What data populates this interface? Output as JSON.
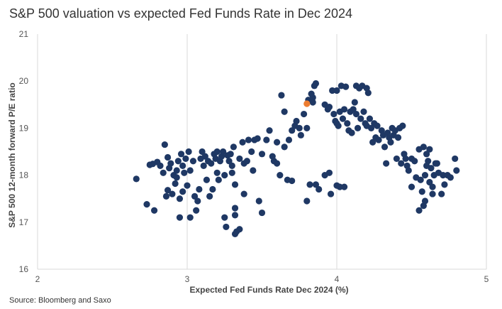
{
  "title": "S&P 500 valuation vs expected Fed Funds Rate in Dec 2024",
  "source": "Source: Bloomberg and Saxo",
  "chart_data": {
    "type": "scatter",
    "title": "S&P 500 valuation vs expected Fed Funds Rate in Dec 2024",
    "xlabel": "Expected Fed Funds Rate Dec 2024 (%)",
    "ylabel": "S&P 500 12-month forward P/E ratio",
    "xlim": [
      2,
      5
    ],
    "ylim": [
      16,
      21
    ],
    "xticks": [
      2,
      3,
      4,
      5
    ],
    "yticks": [
      16,
      17,
      18,
      19,
      20,
      21
    ],
    "grid": "vertical",
    "colors": {
      "series": "#1f3864",
      "highlight": "#ed7d31",
      "grid": "#d9d9d9"
    },
    "series": [
      {
        "color": "#1f3864",
        "points": [
          [
            2.66,
            17.92
          ],
          [
            2.73,
            17.38
          ],
          [
            2.75,
            18.22
          ],
          [
            2.77,
            18.24
          ],
          [
            2.78,
            17.25
          ],
          [
            2.8,
            18.28
          ],
          [
            2.82,
            18.2
          ],
          [
            2.84,
            18.05
          ],
          [
            2.85,
            18.65
          ],
          [
            2.86,
            17.55
          ],
          [
            2.87,
            18.38
          ],
          [
            2.87,
            17.68
          ],
          [
            2.88,
            18.15
          ],
          [
            2.89,
            18.25
          ],
          [
            2.9,
            17.6
          ],
          [
            2.91,
            18.0
          ],
          [
            2.92,
            17.82
          ],
          [
            2.93,
            18.1
          ],
          [
            2.93,
            17.95
          ],
          [
            2.94,
            18.3
          ],
          [
            2.95,
            17.5
          ],
          [
            2.95,
            17.1
          ],
          [
            2.96,
            18.45
          ],
          [
            2.97,
            18.2
          ],
          [
            2.97,
            17.65
          ],
          [
            2.98,
            18.05
          ],
          [
            2.99,
            18.35
          ],
          [
            3.0,
            17.78
          ],
          [
            3.01,
            18.5
          ],
          [
            3.02,
            18.1
          ],
          [
            3.02,
            17.1
          ],
          [
            3.04,
            18.3
          ],
          [
            3.05,
            17.55
          ],
          [
            3.06,
            17.25
          ],
          [
            3.07,
            17.45
          ],
          [
            3.08,
            17.7
          ],
          [
            3.09,
            18.35
          ],
          [
            3.1,
            18.5
          ],
          [
            3.11,
            18.2
          ],
          [
            3.12,
            18.4
          ],
          [
            3.13,
            17.9
          ],
          [
            3.14,
            18.3
          ],
          [
            3.15,
            17.55
          ],
          [
            3.16,
            18.25
          ],
          [
            3.17,
            17.7
          ],
          [
            3.18,
            18.45
          ],
          [
            3.19,
            18.35
          ],
          [
            3.2,
            18.5
          ],
          [
            3.2,
            18.05
          ],
          [
            3.21,
            17.9
          ],
          [
            3.22,
            18.3
          ],
          [
            3.23,
            18.4
          ],
          [
            3.24,
            18.5
          ],
          [
            3.25,
            18.0
          ],
          [
            3.25,
            17.1
          ],
          [
            3.26,
            16.9
          ],
          [
            3.27,
            18.42
          ],
          [
            3.28,
            18.3
          ],
          [
            3.29,
            18.45
          ],
          [
            3.3,
            18.2
          ],
          [
            3.3,
            18.05
          ],
          [
            3.31,
            18.6
          ],
          [
            3.32,
            17.8
          ],
          [
            3.32,
            17.3
          ],
          [
            3.32,
            17.15
          ],
          [
            3.32,
            16.75
          ],
          [
            3.33,
            16.8
          ],
          [
            3.35,
            16.85
          ],
          [
            3.35,
            18.35
          ],
          [
            3.37,
            18.7
          ],
          [
            3.38,
            18.25
          ],
          [
            3.38,
            17.6
          ],
          [
            3.4,
            18.3
          ],
          [
            3.41,
            18.75
          ],
          [
            3.43,
            18.5
          ],
          [
            3.44,
            18.1
          ],
          [
            3.45,
            18.75
          ],
          [
            3.47,
            18.78
          ],
          [
            3.48,
            17.45
          ],
          [
            3.5,
            18.45
          ],
          [
            3.5,
            17.2
          ],
          [
            3.53,
            18.75
          ],
          [
            3.55,
            18.95
          ],
          [
            3.57,
            18.4
          ],
          [
            3.58,
            18.3
          ],
          [
            3.6,
            18.7
          ],
          [
            3.6,
            18.25
          ],
          [
            3.62,
            18.0
          ],
          [
            3.63,
            19.7
          ],
          [
            3.65,
            19.35
          ],
          [
            3.65,
            18.6
          ],
          [
            3.67,
            17.9
          ],
          [
            3.68,
            18.75
          ],
          [
            3.7,
            18.95
          ],
          [
            3.7,
            17.88
          ],
          [
            3.72,
            19.05
          ],
          [
            3.73,
            19.15
          ],
          [
            3.75,
            19.0
          ],
          [
            3.76,
            18.85
          ],
          [
            3.78,
            19.3
          ],
          [
            3.8,
            19.0
          ],
          [
            3.8,
            17.45
          ],
          [
            3.81,
            19.6
          ],
          [
            3.82,
            17.8
          ],
          [
            3.83,
            19.73
          ],
          [
            3.84,
            19.65
          ],
          [
            3.84,
            19.55
          ],
          [
            3.85,
            19.9
          ],
          [
            3.86,
            19.95
          ],
          [
            3.86,
            17.8
          ],
          [
            3.88,
            17.7
          ],
          [
            3.92,
            19.5
          ],
          [
            3.92,
            18.0
          ],
          [
            3.94,
            19.4
          ],
          [
            3.95,
            19.45
          ],
          [
            3.95,
            18.05
          ],
          [
            3.96,
            17.6
          ],
          [
            3.97,
            19.8
          ],
          [
            3.98,
            19.3
          ],
          [
            3.99,
            19.15
          ],
          [
            4.0,
            19.8
          ],
          [
            4.0,
            19.1
          ],
          [
            4.0,
            17.78
          ],
          [
            4.01,
            19.05
          ],
          [
            4.02,
            19.35
          ],
          [
            4.02,
            17.75
          ],
          [
            4.03,
            19.9
          ],
          [
            4.04,
            19.2
          ],
          [
            4.05,
            19.4
          ],
          [
            4.05,
            17.75
          ],
          [
            4.06,
            19.88
          ],
          [
            4.07,
            19.1
          ],
          [
            4.08,
            18.95
          ],
          [
            4.09,
            19.35
          ],
          [
            4.1,
            18.9
          ],
          [
            4.11,
            19.4
          ],
          [
            4.12,
            19.55
          ],
          [
            4.13,
            19.3
          ],
          [
            4.13,
            19.9
          ],
          [
            4.14,
            19.0
          ],
          [
            4.15,
            19.85
          ],
          [
            4.16,
            19.2
          ],
          [
            4.17,
            19.9
          ],
          [
            4.18,
            19.35
          ],
          [
            4.19,
            19.1
          ],
          [
            4.2,
            19.85
          ],
          [
            4.2,
            19.05
          ],
          [
            4.21,
            19.75
          ],
          [
            4.22,
            19.2
          ],
          [
            4.23,
            19.0
          ],
          [
            4.24,
            18.7
          ],
          [
            4.25,
            19.1
          ],
          [
            4.26,
            18.8
          ],
          [
            4.27,
            19.05
          ],
          [
            4.28,
            18.75
          ],
          [
            4.3,
            18.95
          ],
          [
            4.31,
            18.85
          ],
          [
            4.32,
            18.6
          ],
          [
            4.33,
            18.25
          ],
          [
            4.34,
            18.9
          ],
          [
            4.35,
            18.8
          ],
          [
            4.36,
            18.7
          ],
          [
            4.37,
            19.0
          ],
          [
            4.38,
            18.85
          ],
          [
            4.39,
            18.95
          ],
          [
            4.4,
            18.35
          ],
          [
            4.41,
            18.8
          ],
          [
            4.42,
            19.0
          ],
          [
            4.43,
            18.25
          ],
          [
            4.44,
            19.05
          ],
          [
            4.45,
            18.45
          ],
          [
            4.46,
            18.35
          ],
          [
            4.47,
            18.2
          ],
          [
            4.48,
            18.1
          ],
          [
            4.5,
            18.35
          ],
          [
            4.5,
            17.75
          ],
          [
            4.52,
            18.3
          ],
          [
            4.53,
            17.95
          ],
          [
            4.55,
            18.55
          ],
          [
            4.55,
            17.25
          ],
          [
            4.56,
            17.9
          ],
          [
            4.57,
            17.65
          ],
          [
            4.58,
            18.6
          ],
          [
            4.58,
            17.35
          ],
          [
            4.59,
            18.0
          ],
          [
            4.59,
            17.45
          ],
          [
            4.6,
            18.45
          ],
          [
            4.6,
            18.2
          ],
          [
            4.61,
            18.3
          ],
          [
            4.62,
            18.55
          ],
          [
            4.62,
            17.85
          ],
          [
            4.63,
            18.15
          ],
          [
            4.64,
            17.75
          ],
          [
            4.64,
            17.6
          ],
          [
            4.65,
            18.0
          ],
          [
            4.66,
            18.25
          ],
          [
            4.67,
            18.25
          ],
          [
            4.68,
            18.05
          ],
          [
            4.7,
            17.6
          ],
          [
            4.71,
            18.0
          ],
          [
            4.72,
            17.8
          ],
          [
            4.74,
            18.0
          ],
          [
            4.76,
            17.95
          ],
          [
            4.79,
            18.35
          ],
          [
            4.8,
            18.1
          ]
        ]
      },
      {
        "color": "#ed7d31",
        "points": [
          [
            3.8,
            19.52
          ]
        ]
      }
    ]
  }
}
